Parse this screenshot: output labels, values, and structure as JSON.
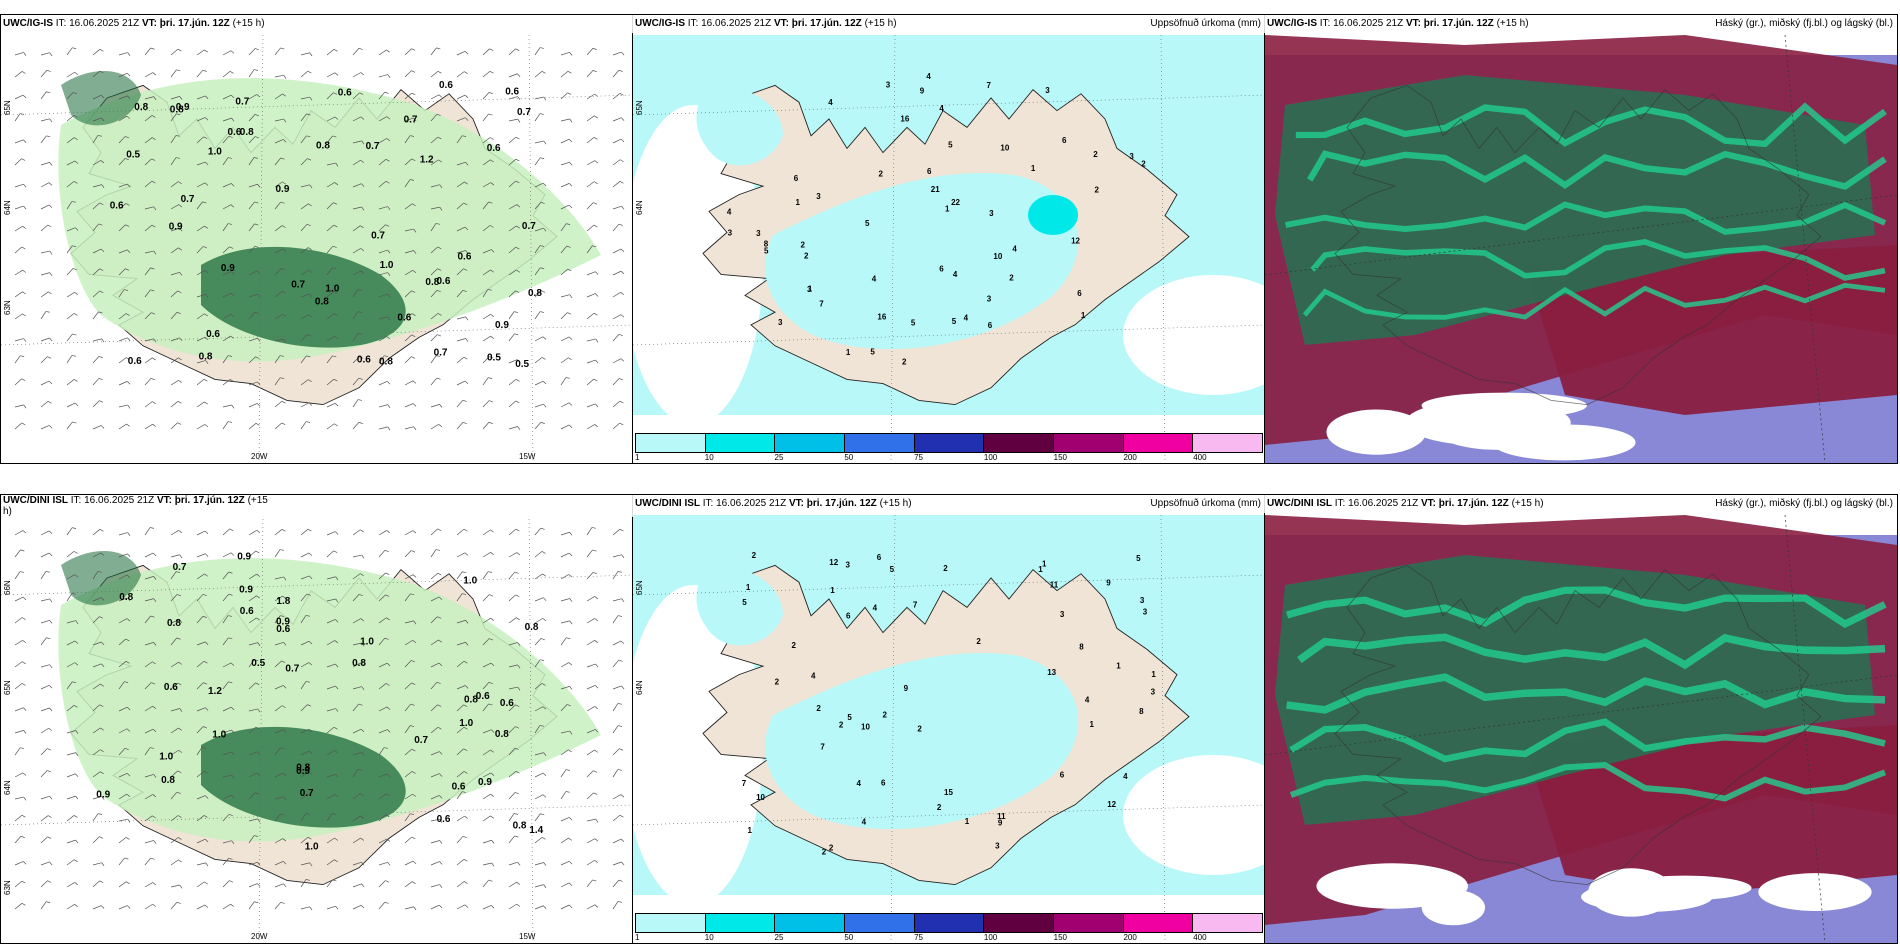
{
  "panels": [
    {
      "id": "p1",
      "model": "UWC/IG-IS",
      "it_label": "IT:",
      "it": "16.06.2025 21Z",
      "vt_label": "VT:",
      "vt": "þri. 17.jún. 12Z",
      "lead": "(+15 h)",
      "right_title": "",
      "kind": "wind",
      "lat_labels": [
        "65N",
        "64N",
        "63N"
      ],
      "lon_labels": [
        "20W",
        "15W"
      ],
      "values": [
        "0.6",
        "0.6",
        "0.6",
        "0.6",
        "0.7",
        "0.8",
        "0.5",
        "0.9",
        "0.6",
        "0.7",
        "0.6",
        "0.7",
        "1.0",
        "0.6",
        "0.6",
        "0.8",
        "0.5",
        "0.7",
        "1.0",
        "0.9",
        "0.8",
        "0.7",
        "1.2",
        "0.8",
        "0.6",
        "0.5",
        "1.0",
        "0.7",
        "0.7",
        "0.9",
        "0.8",
        "0.8",
        "0.8",
        "0.6",
        "0.7",
        "0.8",
        "0.6",
        "0.9",
        "0.7",
        "0.6",
        "0.9",
        "0.8"
      ]
    },
    {
      "id": "p2",
      "model": "UWC/IG-IS",
      "it_label": "IT:",
      "it": "16.06.2025 21Z",
      "vt_label": "VT:",
      "vt": "þri. 17.jún. 12Z",
      "lead": "(+15 h)",
      "right_title": "Uppsöfnuð úrkoma (mm)",
      "kind": "precip",
      "lat_labels": [
        "65N",
        "64N"
      ],
      "lon_labels": [],
      "values": [
        "3",
        "3",
        "4",
        "6",
        "4",
        "3",
        "2",
        "1",
        "2",
        "1",
        "3",
        "4",
        "2",
        "1",
        "2",
        "3",
        "1",
        "4",
        "3",
        "5",
        "6",
        "9",
        "16",
        "22",
        "21",
        "16",
        "8",
        "7",
        "5",
        "4",
        "6",
        "7",
        "4",
        "6",
        "6",
        "5",
        "3",
        "3",
        "10",
        "12",
        "2",
        "4",
        "5",
        "2",
        "3",
        "1",
        "10",
        "5",
        "4",
        "3",
        "2",
        "1",
        "6",
        "2",
        "5"
      ]
    },
    {
      "id": "p3",
      "model": "UWC/IG-IS",
      "it_label": "IT:",
      "it": "16.06.2025 21Z",
      "vt_label": "VT:",
      "vt": "þri. 17.jún. 12Z",
      "lead": "(+15 h)",
      "right_title": "Háský (gr.), miðský (fj.bl.) og lágský (bl.)",
      "kind": "cloud",
      "lat_labels": [],
      "lon_labels": [],
      "values": []
    },
    {
      "id": "p4",
      "model": "UWC/DINI ISL",
      "it_label": "IT:",
      "it": "16.06.2025 21Z",
      "vt_label": "VT:",
      "vt": "þri. 17.jún. 12Z",
      "lead": "(+15",
      "lead2": "h)",
      "right_title": "",
      "kind": "wind",
      "lat_labels": [
        "66N",
        "65N",
        "64N",
        "63N"
      ],
      "lon_labels": [
        "20W",
        "15W"
      ],
      "values": [
        "0.6",
        "0.7",
        "0.5",
        "0.7",
        "0.9",
        "0.7",
        "1.4",
        "0.6",
        "0.7",
        "0.8",
        "1.0",
        "0.8",
        "0.9",
        "0.9",
        "0.8",
        "0.8",
        "0.8",
        "1.0",
        "0.9",
        "0.6",
        "1.0",
        "0.9",
        "0.6",
        "0.8",
        "1.2",
        "0.8",
        "0.6",
        "1.0",
        "0.6",
        "1.8",
        "1.0",
        "0.6",
        "0.8",
        "1.0",
        "0.8",
        "0.9"
      ]
    },
    {
      "id": "p5",
      "model": "UWC/DINI ISL",
      "it_label": "IT:",
      "it": "16.06.2025 21Z",
      "vt_label": "VT:",
      "vt": "þri. 17.jún. 12Z",
      "lead": "(+15 h)",
      "right_title": "Uppsöfnuð úrkoma (mm)",
      "kind": "precip",
      "lat_labels": [
        "65N",
        "64N"
      ],
      "lon_labels": [],
      "values": [
        "1",
        "1",
        "2",
        "1",
        "2",
        "2",
        "1",
        "3",
        "1",
        "1",
        "2",
        "5",
        "4",
        "6",
        "2",
        "7",
        "1",
        "7",
        "9",
        "9",
        "12",
        "11",
        "9",
        "7",
        "8",
        "11",
        "8",
        "6",
        "3",
        "2",
        "4",
        "5",
        "6",
        "4",
        "6",
        "3",
        "2",
        "4",
        "4",
        "5",
        "2",
        "5",
        "13",
        "12",
        "15",
        "4",
        "2",
        "3",
        "3",
        "2",
        "1",
        "10",
        "10",
        "2",
        "3",
        "2",
        "1"
      ]
    },
    {
      "id": "p6",
      "model": "UWC/DINI ISL",
      "it_label": "IT:",
      "it": "16.06.2025 21Z",
      "vt_label": "VT:",
      "vt": "þri. 17.jún. 12Z",
      "lead": "(+15 h)",
      "right_title": "Háský (gr.), miðský (fj.bl.) og lágský (bl.)",
      "kind": "cloud",
      "lat_labels": [],
      "lon_labels": [],
      "values": []
    }
  ],
  "colorbar": {
    "ticks": [
      "1",
      "10",
      "25",
      "50",
      "75",
      "100",
      "150",
      "200",
      "400"
    ],
    "colors": [
      "#b8f8f8",
      "#00e8e8",
      "#00c0e8",
      "#3070e8",
      "#2030b0",
      "#600040",
      "#a00070",
      "#f000a0",
      "#f8b8f0"
    ]
  },
  "colors": {
    "land": "#f0e4d6",
    "sea": "#ffffff",
    "precip_light": "#b8f8f8",
    "wind_green": "#c8f0c0",
    "wind_dark": "#1a6a3a",
    "cloud_high": "#2e6a52",
    "cloud_mid": "#8a1e40",
    "cloud_low": "#6060c8"
  }
}
